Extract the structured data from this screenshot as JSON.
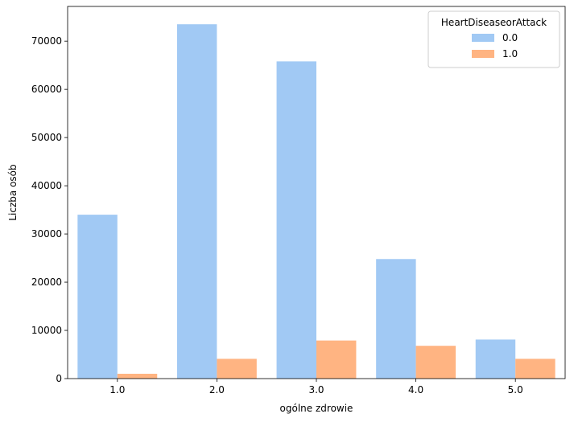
{
  "chart_data": {
    "type": "bar",
    "categories": [
      "1.0",
      "2.0",
      "3.0",
      "4.0",
      "5.0"
    ],
    "series": [
      {
        "name": "0.0",
        "color": "#a1c9f4",
        "values": [
          34000,
          73500,
          65800,
          24800,
          8100
        ]
      },
      {
        "name": "1.0",
        "color": "#ffb482",
        "values": [
          1000,
          4100,
          7900,
          6800,
          4100
        ]
      }
    ],
    "xlabel": "ogólne zdrowie",
    "ylabel": "Liczba osób",
    "ylim": [
      0,
      77200
    ],
    "yticks": [
      0,
      10000,
      20000,
      30000,
      40000,
      50000,
      60000,
      70000
    ],
    "grid": false,
    "legend": {
      "title": "HeartDiseaseorAttack",
      "position": "top-right"
    }
  }
}
